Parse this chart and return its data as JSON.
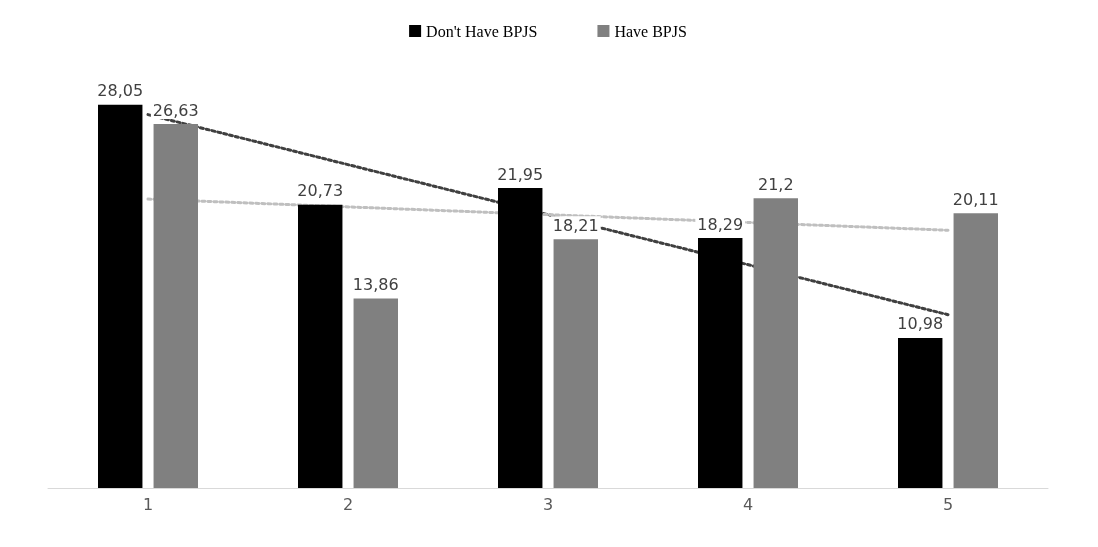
{
  "chart_data": {
    "type": "bar",
    "categories": [
      "1",
      "2",
      "3",
      "4",
      "5"
    ],
    "series": [
      {
        "name": "Don't Have BPJS",
        "color": "#000000",
        "values": [
          28.05,
          20.73,
          21.95,
          18.29,
          10.98
        ],
        "value_labels": [
          "28,05",
          "20,73",
          "21,95",
          "18,29",
          "10,98"
        ]
      },
      {
        "name": "Have BPJS",
        "color": "#808080",
        "values": [
          26.63,
          13.86,
          18.21,
          21.2,
          20.11
        ],
        "value_labels": [
          "26,63",
          "13,86",
          "18,21",
          "21,2",
          "20,11"
        ]
      },
      {
        "type": "line",
        "color": "#404040",
        "line_style": "dotted",
        "marker": "none",
        "x": [
          "1",
          "5"
        ],
        "values": [
          27.32,
          12.68
        ]
      },
      {
        "type": "line",
        "color": "#bfbfbf",
        "line_style": "dotted",
        "marker": "none",
        "x": [
          "1",
          "5"
        ],
        "values": [
          21.14,
          18.86
        ]
      }
    ],
    "legend": "top",
    "grid": false
  }
}
